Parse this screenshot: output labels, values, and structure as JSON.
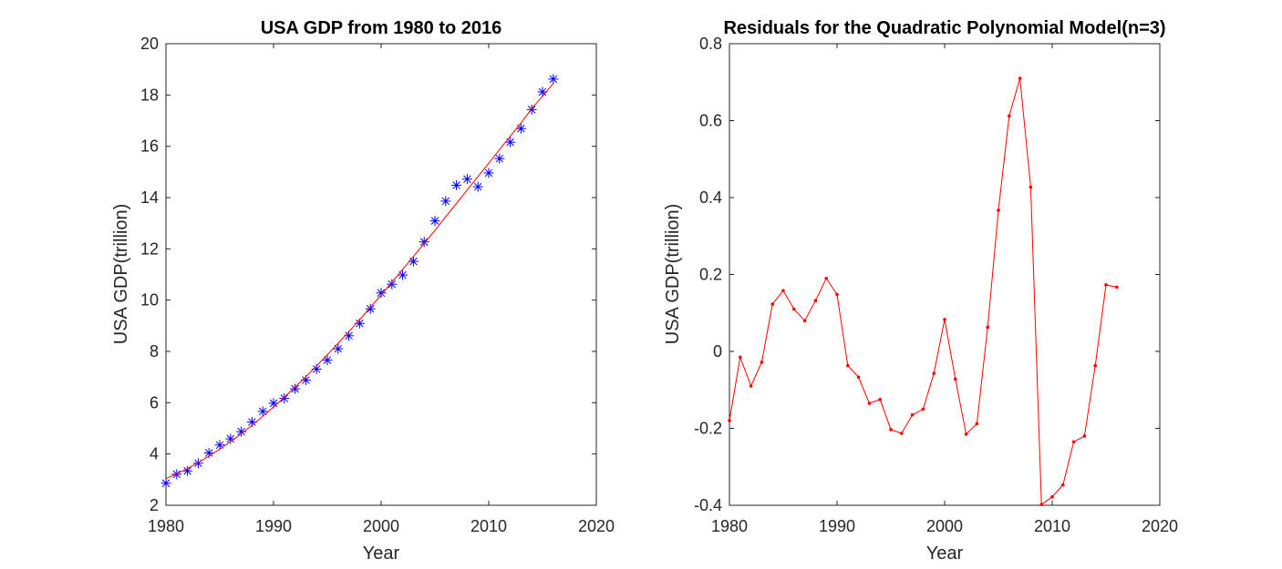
{
  "chart_data": [
    {
      "type": "scatter",
      "title": "USA GDP from 1980 to 2016",
      "xlabel": "Year",
      "ylabel": "USA GDP(trillion)",
      "xlim": [
        1980,
        2020
      ],
      "ylim": [
        2,
        20
      ],
      "xticks": [
        1980,
        1990,
        2000,
        2010,
        2020
      ],
      "yticks": [
        2,
        4,
        6,
        8,
        10,
        12,
        14,
        16,
        18,
        20
      ],
      "grid": false,
      "series": [
        {
          "kind": "markers",
          "marker": "asterisk",
          "color": "#0000ff",
          "x": [
            1980,
            1981,
            1982,
            1983,
            1984,
            1985,
            1986,
            1987,
            1988,
            1989,
            1990,
            1991,
            1992,
            1993,
            1994,
            1995,
            1996,
            1997,
            1998,
            1999,
            2000,
            2001,
            2002,
            2003,
            2004,
            2005,
            2006,
            2007,
            2008,
            2009,
            2010,
            2011,
            2012,
            2013,
            2014,
            2015,
            2016
          ],
          "y": [
            2.86,
            3.21,
            3.34,
            3.64,
            4.04,
            4.35,
            4.59,
            4.87,
            5.25,
            5.66,
            5.98,
            6.17,
            6.54,
            6.88,
            7.31,
            7.66,
            8.1,
            8.61,
            9.09,
            9.66,
            10.28,
            10.62,
            10.98,
            11.51,
            12.27,
            13.09,
            13.86,
            14.48,
            14.72,
            14.42,
            14.96,
            15.52,
            16.16,
            16.69,
            17.43,
            18.12,
            18.62
          ]
        },
        {
          "kind": "line",
          "color": "#ff0000",
          "x": [
            1980,
            1981,
            1982,
            1983,
            1984,
            1985,
            1986,
            1987,
            1988,
            1989,
            1990,
            1991,
            1992,
            1993,
            1994,
            1995,
            1996,
            1997,
            1998,
            1999,
            2000,
            2001,
            2002,
            2003,
            2004,
            2005,
            2006,
            2007,
            2008,
            2009,
            2010,
            2011,
            2012,
            2013,
            2014,
            2015,
            2016
          ],
          "y": [
            3.04,
            3.22,
            3.43,
            3.67,
            3.92,
            4.19,
            4.48,
            4.79,
            5.12,
            5.47,
            5.83,
            6.21,
            6.61,
            7.01,
            7.44,
            7.87,
            8.32,
            8.77,
            9.24,
            9.72,
            10.2,
            10.7,
            11.2,
            11.7,
            12.21,
            12.72,
            13.25,
            13.77,
            14.3,
            14.82,
            15.34,
            15.87,
            16.39,
            16.91,
            17.47,
            17.95,
            18.45
          ]
        }
      ]
    },
    {
      "type": "line",
      "title": "Residuals for the Quadratic Polynomial Model(n=3)",
      "xlabel": "Year",
      "ylabel": "USA GDP(trillion)",
      "xlim": [
        1980,
        2020
      ],
      "ylim": [
        -0.4,
        0.8
      ],
      "xticks": [
        1980,
        1990,
        2000,
        2010,
        2020
      ],
      "yticks": [
        -0.4,
        -0.2,
        0,
        0.2,
        0.4,
        0.6,
        0.8
      ],
      "grid": false,
      "series": [
        {
          "kind": "line-markers",
          "marker": "dot",
          "color": "#ff0000",
          "x": [
            1980,
            1981,
            1982,
            1983,
            1984,
            1985,
            1986,
            1987,
            1988,
            1989,
            1990,
            1991,
            1992,
            1993,
            1994,
            1995,
            1996,
            1997,
            1998,
            1999,
            2000,
            2001,
            2002,
            2003,
            2004,
            2005,
            2006,
            2007,
            2008,
            2009,
            2010,
            2011,
            2012,
            2013,
            2014,
            2015,
            2016
          ],
          "y": [
            -0.18,
            -0.015,
            -0.09,
            -0.028,
            0.123,
            0.158,
            0.11,
            0.08,
            0.132,
            0.19,
            0.148,
            -0.037,
            -0.067,
            -0.135,
            -0.125,
            -0.203,
            -0.213,
            -0.165,
            -0.15,
            -0.057,
            0.083,
            -0.072,
            -0.215,
            -0.188,
            0.063,
            0.367,
            0.612,
            0.71,
            0.427,
            -0.398,
            -0.378,
            -0.347,
            -0.235,
            -0.22,
            -0.037,
            0.173,
            0.167
          ]
        }
      ]
    }
  ]
}
